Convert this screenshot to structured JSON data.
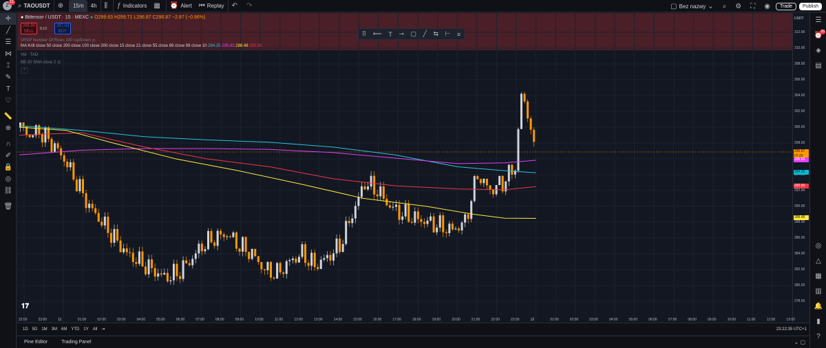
{
  "topbar": {
    "avatar_badge": "13",
    "symbol": "TAOUSDT",
    "add_icon": "plus-circle-icon",
    "intervals": [
      "15m",
      "4h"
    ],
    "indicators_label": "Indicators",
    "alert_label": "Alert",
    "replay_label": "Replay",
    "layout_name": "Bez nazwy",
    "trade_label": "Trade",
    "publish_label": "Publish"
  },
  "legend": {
    "symbol_line": "Bittensor / USDT · 15 · MEXC",
    "ohlc": "O299.63 H299.71 L296.87 C296.87 −2.87 (−0.96%)",
    "sell_price": "296.90",
    "sell_label": "SELL",
    "spread": "0.13",
    "buy_price": "297.03",
    "buy_label": "BUY",
    "vrvp": "VRVP Number Of Rows 100 Up/Down",
    "ma_prefix": "MA Krill close 50 close 200 close 100 close 300 close 15 close 21 close 55 close 89 close 99 close 10",
    "ma_values": [
      "294.25",
      "295.83",
      "288.48",
      "292.50"
    ],
    "vol": "Vol · TAO",
    "bb": "BB 20 SMA close 2"
  },
  "price_axis": {
    "labels": [
      "312.00",
      "310.00",
      "308.00",
      "306.00",
      "304.00",
      "302.00",
      "300.00",
      "298.00",
      "296.00",
      "294.00",
      "292.00",
      "290.00",
      "288.00",
      "286.00",
      "284.00",
      "282.00",
      "280.00",
      "278.00"
    ],
    "tags": [
      {
        "value": "296.87",
        "color": "#ff9800"
      },
      {
        "value": "07:25",
        "color": "#ff9800"
      },
      {
        "value": "295.83",
        "color": "#e040fb"
      },
      {
        "value": "294.25",
        "color": "#00bcd4"
      },
      {
        "value": "292.50",
        "color": "#f23645"
      },
      {
        "value": "288.48",
        "color": "#ffeb3b"
      }
    ],
    "currency": "USDT"
  },
  "time_axis": {
    "labels": [
      "22:00",
      "23:00",
      "11",
      "01:00",
      "02:00",
      "03:00",
      "04:00",
      "05:00",
      "06:00",
      "07:00",
      "08:00",
      "09:00",
      "10:00",
      "11:00",
      "12:00",
      "13:00",
      "14:00",
      "15:00",
      "16:00",
      "17:00",
      "18:00",
      "19:00",
      "20:00",
      "21:00",
      "22:00",
      "23:00",
      "12",
      "01:00",
      "02:00",
      "03:00",
      "04:00",
      "05:00",
      "06:00",
      "07:00",
      "08:00",
      "09:00",
      "10:00",
      "11:00",
      "12:00",
      "13:00"
    ]
  },
  "ranges": [
    "1D",
    "5D",
    "1M",
    "3M",
    "6M",
    "YTD",
    "1Y",
    "All"
  ],
  "clock": "23:22:35 UTC+1",
  "panels": [
    "Pine Editor",
    "Trading Panel"
  ],
  "colors": {
    "up": "#d1d4dc",
    "down": "#ff9800",
    "ma_yellow": "#ffeb3b",
    "ma_cyan": "#26a69a",
    "ma_magenta": "#e040fb",
    "ma_red": "#f23645"
  },
  "chart_data": {
    "type": "candlestick",
    "ylim": [
      277,
      314
    ],
    "candles_close_hint": "approximate path",
    "path": [
      [
        0,
        300
      ],
      [
        3,
        299
      ],
      [
        6,
        299.5
      ],
      [
        10,
        298
      ],
      [
        14,
        296
      ],
      [
        18,
        293
      ],
      [
        22,
        290
      ],
      [
        26,
        288
      ],
      [
        30,
        286
      ],
      [
        34,
        284
      ],
      [
        38,
        283
      ],
      [
        42,
        282
      ],
      [
        46,
        281
      ],
      [
        50,
        281.5
      ],
      [
        54,
        283
      ],
      [
        58,
        285
      ],
      [
        62,
        286
      ],
      [
        66,
        286.5
      ],
      [
        70,
        285
      ],
      [
        74,
        284
      ],
      [
        78,
        282
      ],
      [
        82,
        281.5
      ],
      [
        86,
        283
      ],
      [
        90,
        284
      ],
      [
        94,
        282.5
      ],
      [
        98,
        283.5
      ],
      [
        102,
        285
      ],
      [
        106,
        289
      ],
      [
        110,
        293
      ],
      [
        114,
        292
      ],
      [
        118,
        290
      ],
      [
        122,
        289
      ],
      [
        126,
        288.5
      ],
      [
        130,
        288
      ],
      [
        134,
        287.5
      ],
      [
        138,
        287
      ],
      [
        142,
        288
      ],
      [
        146,
        294
      ],
      [
        150,
        292
      ],
      [
        154,
        293
      ],
      [
        158,
        295
      ],
      [
        160,
        304
      ],
      [
        162,
        302
      ],
      [
        164,
        297
      ]
    ]
  }
}
